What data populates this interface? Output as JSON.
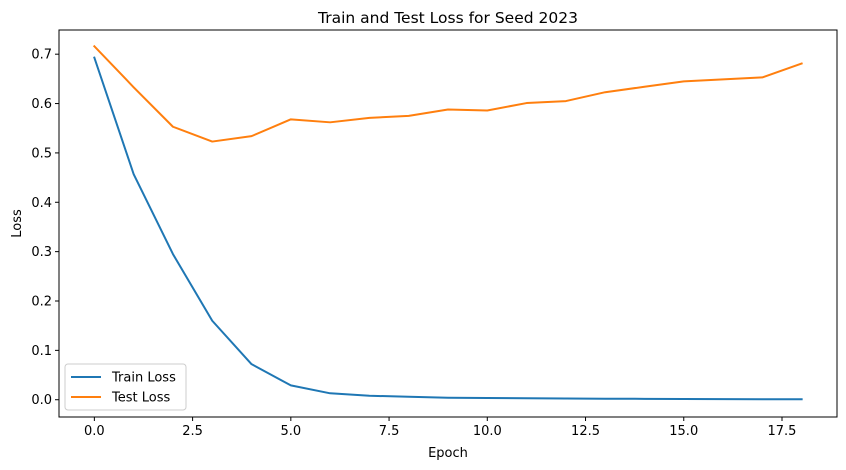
{
  "chart_data": {
    "type": "line",
    "title": "Train and Test Loss for Seed 2023",
    "xlabel": "Epoch",
    "ylabel": "Loss",
    "xlim": [
      -0.9,
      18.9
    ],
    "ylim": [
      -0.035,
      0.749
    ],
    "xticks": [
      0.0,
      2.5,
      5.0,
      7.5,
      10.0,
      12.5,
      15.0,
      17.5
    ],
    "xtick_labels": [
      "0.0",
      "2.5",
      "5.0",
      "7.5",
      "10.0",
      "12.5",
      "15.0",
      "17.5"
    ],
    "yticks": [
      0.0,
      0.1,
      0.2,
      0.3,
      0.4,
      0.5,
      0.6,
      0.7
    ],
    "ytick_labels": [
      "0.0",
      "0.1",
      "0.2",
      "0.3",
      "0.4",
      "0.5",
      "0.6",
      "0.7"
    ],
    "grid": false,
    "legend_position": "lower-left",
    "x": [
      0,
      1,
      2,
      3,
      4,
      5,
      6,
      7,
      8,
      9,
      10,
      11,
      12,
      13,
      14,
      15,
      16,
      17,
      18
    ],
    "series": [
      {
        "name": "Train Loss",
        "color": "#1f77b4",
        "values": [
          0.693,
          0.457,
          0.295,
          0.16,
          0.072,
          0.029,
          0.013,
          0.008,
          0.006,
          0.004,
          0.0035,
          0.003,
          0.0025,
          0.002,
          0.0018,
          0.0015,
          0.0013,
          0.001,
          0.001
        ]
      },
      {
        "name": "Test Loss",
        "color": "#ff7f0e",
        "values": [
          0.716,
          0.633,
          0.553,
          0.523,
          0.534,
          0.568,
          0.562,
          0.571,
          0.575,
          0.588,
          0.586,
          0.601,
          0.605,
          0.623,
          0.634,
          0.645,
          0.649,
          0.653,
          0.681
        ]
      }
    ]
  }
}
